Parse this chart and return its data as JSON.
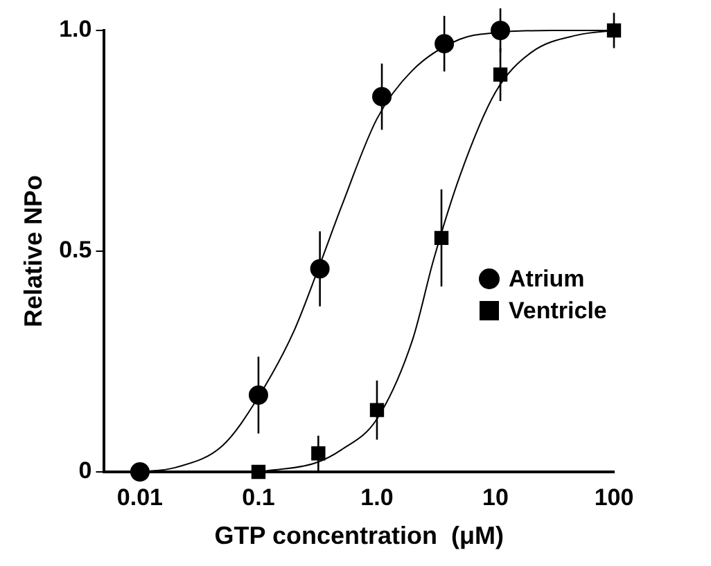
{
  "chart_data": {
    "type": "scatter",
    "xlabel": "GTP concentration  (μM)",
    "ylabel": "Relative NPo",
    "log": "x",
    "xlim": [
      0.005,
      100
    ],
    "xticks": [
      0.01,
      0.1,
      {
        "value": 1,
        "label": "1.0"
      },
      10,
      100
    ],
    "ylim": [
      0,
      1
    ],
    "yticks": [
      0,
      0.5,
      {
        "value": 1,
        "label": "1.0"
      }
    ],
    "grid": false,
    "legend": "right",
    "series": [
      {
        "name": "Atrium",
        "marker": "circle",
        "color": "#000000",
        "x": [
          0.01,
          0.1,
          0.33,
          1.1,
          3.7,
          11
        ],
        "values": [
          0,
          0.174,
          0.46,
          0.85,
          0.97,
          1.0
        ],
        "errors": [
          null,
          0.087,
          0.085,
          0.075,
          0.063,
          0.05
        ]
      },
      {
        "name": "Ventricle",
        "marker": "square",
        "color": "#000000",
        "x": [
          0.1,
          0.32,
          1.0,
          3.5,
          11,
          100
        ],
        "values": [
          0,
          0.042,
          0.14,
          0.53,
          0.9,
          1.0
        ],
        "errors": [
          null,
          0.04,
          0.067,
          0.11,
          0.06,
          0.04
        ]
      },
      {
        "type": "line",
        "marker": "none",
        "color": "#000000",
        "x": [
          0.01,
          0.02,
          0.05,
          0.1,
          0.2,
          0.33,
          0.5,
          1,
          2,
          5,
          10,
          30,
          100
        ],
        "values": [
          0,
          0.01,
          0.06,
          0.17,
          0.32,
          0.47,
          0.6,
          0.8,
          0.91,
          0.98,
          0.995,
          1,
          1
        ]
      },
      {
        "type": "line",
        "marker": "none",
        "color": "#000000",
        "x": [
          0.1,
          0.3,
          0.5,
          1,
          2,
          3,
          5,
          10,
          20,
          50,
          100
        ],
        "values": [
          0,
          0.02,
          0.05,
          0.12,
          0.3,
          0.48,
          0.67,
          0.86,
          0.95,
          0.99,
          1
        ]
      }
    ]
  }
}
